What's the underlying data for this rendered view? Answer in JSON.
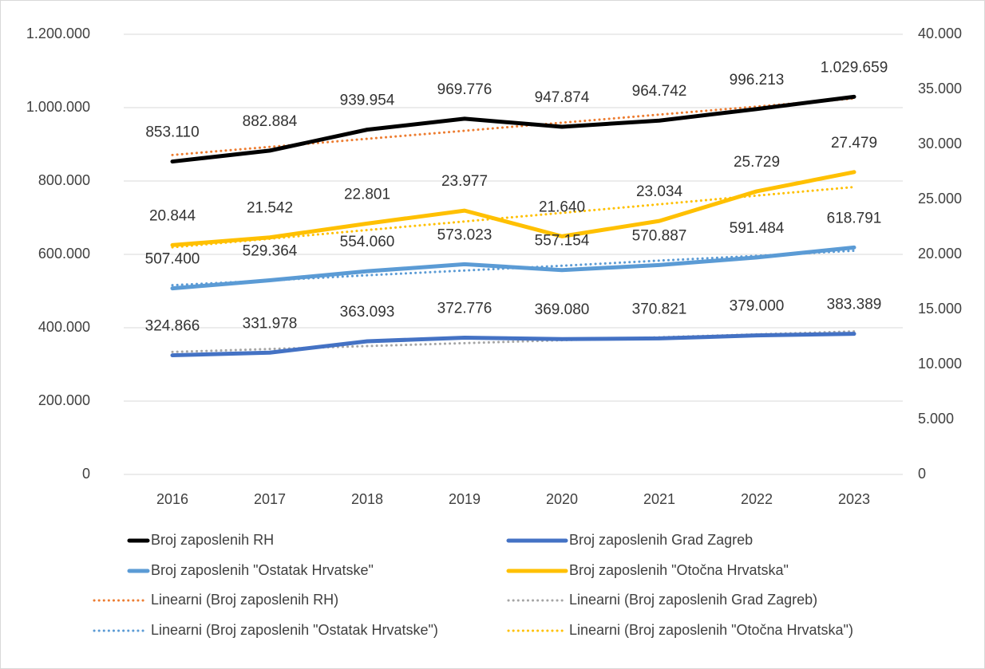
{
  "chart_data": {
    "type": "line",
    "categories": [
      "2016",
      "2017",
      "2018",
      "2019",
      "2020",
      "2021",
      "2022",
      "2023"
    ],
    "ylim": [
      0,
      1200000
    ],
    "yticks": [
      0,
      {
        "value": 200000,
        "label": "200.000"
      },
      {
        "value": 400000,
        "label": "400.000"
      },
      {
        "value": 600000,
        "label": "600.000"
      },
      {
        "value": 800000,
        "label": "800.000"
      },
      {
        "value": 1000000,
        "label": "1.000.000"
      },
      {
        "value": 1200000,
        "label": "1.200.000"
      }
    ],
    "y2lim": [
      0,
      40000
    ],
    "y2ticks": [
      0,
      {
        "value": 5000,
        "label": "5.000"
      },
      {
        "value": 10000,
        "label": "10.000"
      },
      {
        "value": 15000,
        "label": "15.000"
      },
      {
        "value": 20000,
        "label": "20.000"
      },
      {
        "value": 25000,
        "label": "25.000"
      },
      {
        "value": 30000,
        "label": "30.000"
      },
      {
        "value": 35000,
        "label": "35.000"
      },
      {
        "value": 40000,
        "label": "40.000"
      }
    ],
    "grid": true,
    "legend": "bottom",
    "series": [
      {
        "name": "Broj zaposlenih RH",
        "color": "#000000",
        "line_style": "solid",
        "values": [
          853110,
          882884,
          939954,
          969776,
          947874,
          964742,
          996213,
          1029659
        ],
        "value_labels": [
          "853.110",
          "882.884",
          "939.954",
          "969.776",
          "947.874",
          "964.742",
          "996.213",
          "1.029.659"
        ]
      },
      {
        "name": "Broj zaposlenih Grad Zagreb",
        "color": "#4472c4",
        "line_style": "solid",
        "values": [
          324866,
          331978,
          363093,
          372776,
          369080,
          370821,
          379000,
          383389
        ],
        "value_labels": [
          "324.866",
          "331.978",
          "363.093",
          "372.776",
          "369.080",
          "370.821",
          "379.000",
          "383.389"
        ]
      },
      {
        "name": "Broj zaposlenih \"Ostatak Hrvatske\"",
        "color": "#5b9bd5",
        "line_style": "solid",
        "values": [
          507400,
          529364,
          554060,
          573023,
          557154,
          570887,
          591484,
          618791
        ],
        "value_labels": [
          "507.400",
          "529.364",
          "554.060",
          "573.023",
          "557.154",
          "570.887",
          "591.484",
          "618.791"
        ]
      },
      {
        "name": "Broj zaposlenih \"Otočna Hrvatska\"",
        "color": "#ffc000",
        "line_style": "solid",
        "axis": "y2",
        "values": [
          20844,
          21542,
          22801,
          23977,
          21640,
          23034,
          25729,
          27479
        ],
        "value_labels": [
          "20.844",
          "21.542",
          "22.801",
          "23.977",
          "21.640",
          "23.034",
          "25.729",
          "27.479"
        ]
      },
      {
        "name": "Linearni (Broj zaposlenih RH)",
        "color": "#ed7d31",
        "line_style": "dotted",
        "values": [
          871000,
          893000,
          915000,
          937000,
          959000,
          981000,
          1003000,
          1025000
        ]
      },
      {
        "name": "Linearni (Broj zaposlenih Grad Zagreb)",
        "color": "#a5a5a5",
        "line_style": "dotted",
        "values": [
          334000,
          342000,
          350000,
          358000,
          366000,
          374000,
          382000,
          390000
        ]
      },
      {
        "name": "Linearni (Broj zaposlenih \"Ostatak Hrvatske\")",
        "color": "#5b9bd5",
        "line_style": "dotted",
        "values": [
          516000,
          529000,
          543000,
          556000,
          569000,
          583000,
          596000,
          610000
        ]
      },
      {
        "name": "Linearni (Broj zaposlenih \"Otočna Hrvatska\")",
        "color": "#ffc000",
        "line_style": "dotted",
        "axis": "y2",
        "values": [
          20640,
          21420,
          22210,
          22990,
          23770,
          24550,
          25340,
          26120
        ]
      }
    ]
  }
}
